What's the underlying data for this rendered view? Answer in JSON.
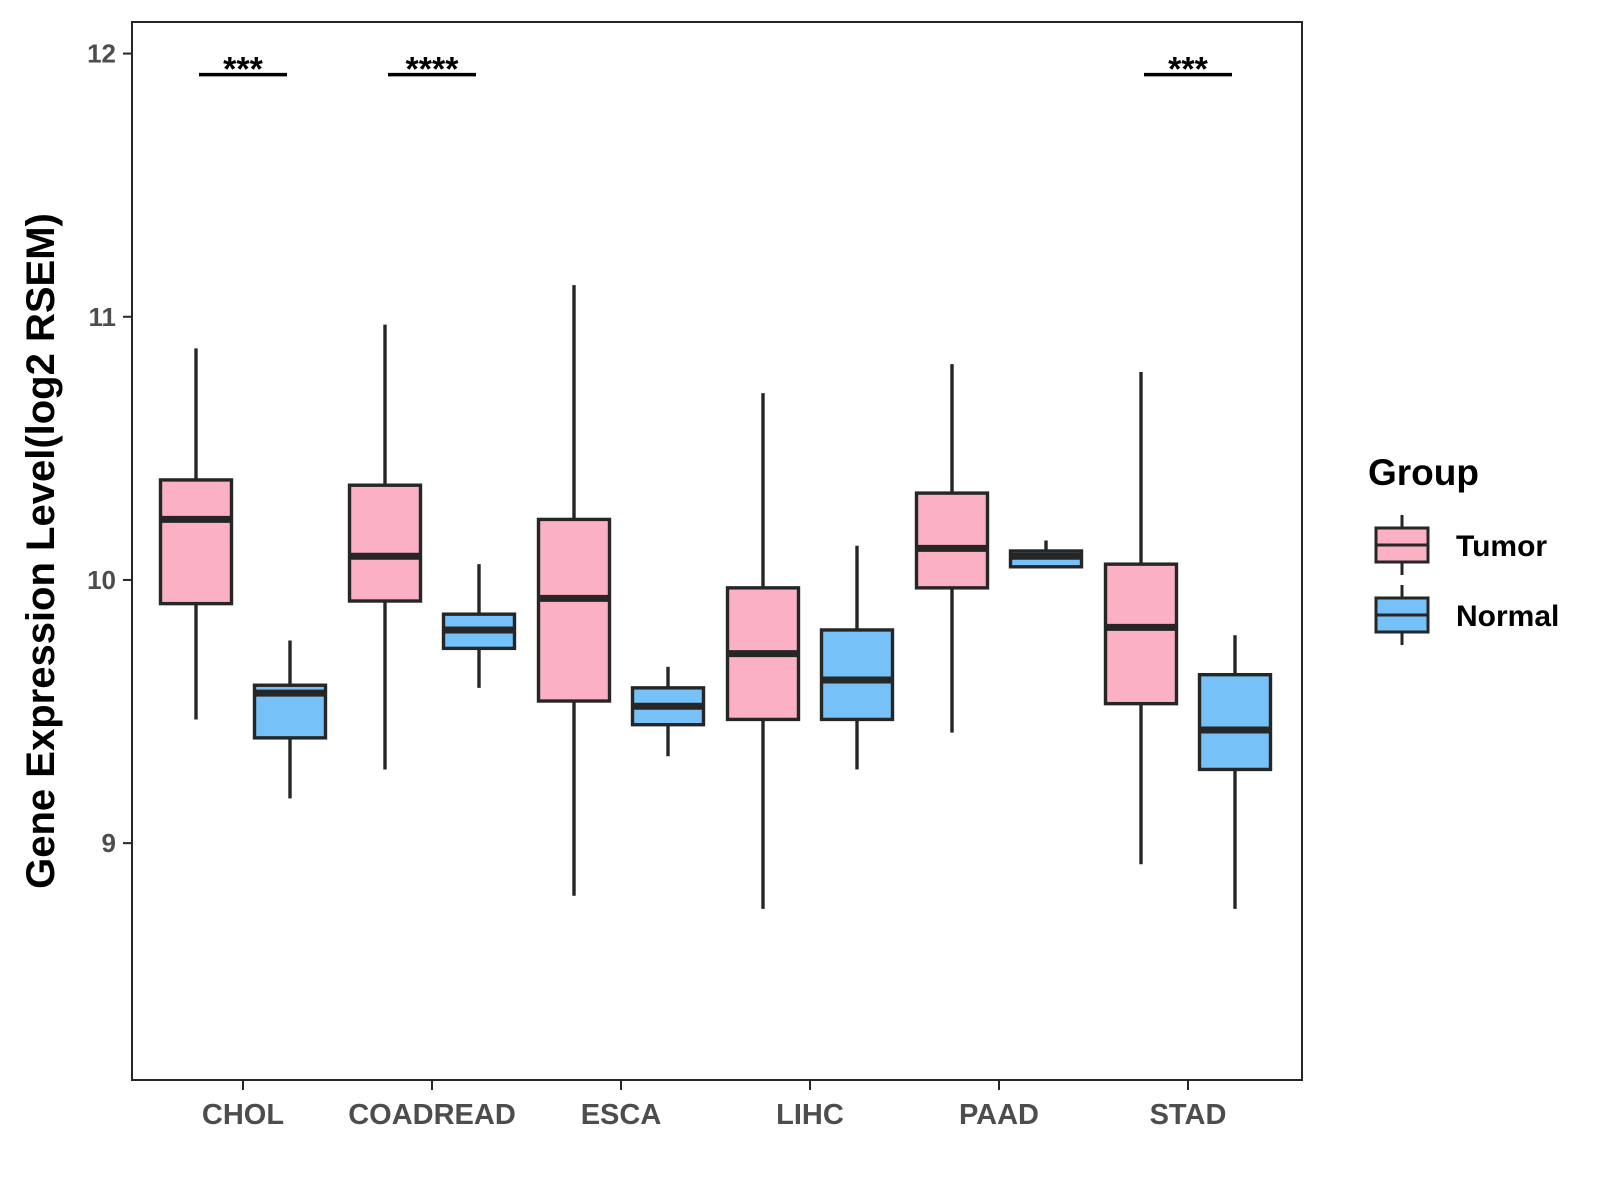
{
  "chart_data": {
    "type": "boxplot",
    "title": "",
    "xlabel": "",
    "ylabel": "Gene Expression Level(log2 RSEM)",
    "ylim": [
      8.1,
      12.12
    ],
    "yticks": [
      9,
      10,
      11,
      12
    ],
    "grid": false,
    "categories": [
      "CHOL",
      "COADREAD",
      "ESCA",
      "LIHC",
      "PAAD",
      "STAD"
    ],
    "legend": {
      "title": "Group",
      "position": "right",
      "entries": [
        {
          "label": "Tumor",
          "color": "#FBB1C3"
        },
        {
          "label": "Normal",
          "color": "#76C2F8"
        }
      ]
    },
    "series": [
      {
        "name": "Tumor",
        "color": "#FBB1C3",
        "boxes": [
          {
            "min": 9.47,
            "q1": 9.91,
            "median": 10.23,
            "q3": 10.38,
            "max": 10.88
          },
          {
            "min": 9.28,
            "q1": 9.92,
            "median": 10.09,
            "q3": 10.36,
            "max": 10.97
          },
          {
            "min": 8.8,
            "q1": 9.54,
            "median": 9.93,
            "q3": 10.23,
            "max": 11.12
          },
          {
            "min": 8.75,
            "q1": 9.47,
            "median": 9.72,
            "q3": 9.97,
            "max": 10.71
          },
          {
            "min": 9.42,
            "q1": 9.97,
            "median": 10.12,
            "q3": 10.33,
            "max": 10.82
          },
          {
            "min": 8.92,
            "q1": 9.53,
            "median": 9.82,
            "q3": 10.06,
            "max": 10.79
          }
        ]
      },
      {
        "name": "Normal",
        "color": "#76C2F8",
        "boxes": [
          {
            "min": 9.17,
            "q1": 9.4,
            "median": 9.57,
            "q3": 9.6,
            "max": 9.77
          },
          {
            "min": 9.59,
            "q1": 9.74,
            "median": 9.81,
            "q3": 9.87,
            "max": 10.06
          },
          {
            "min": 9.33,
            "q1": 9.45,
            "median": 9.52,
            "q3": 9.59,
            "max": 9.67
          },
          {
            "min": 9.28,
            "q1": 9.47,
            "median": 9.62,
            "q3": 9.81,
            "max": 10.13
          },
          {
            "min": 10.05,
            "q1": 10.05,
            "median": 10.09,
            "q3": 10.11,
            "max": 10.15
          },
          {
            "min": 8.75,
            "q1": 9.28,
            "median": 9.43,
            "q3": 9.64,
            "max": 9.79
          }
        ]
      }
    ],
    "annotations": [
      {
        "category": "CHOL",
        "label": "***",
        "y": 11.92
      },
      {
        "category": "COADREAD",
        "label": "****",
        "y": 11.92
      },
      {
        "category": "STAD",
        "label": "***",
        "y": 11.92
      }
    ]
  }
}
